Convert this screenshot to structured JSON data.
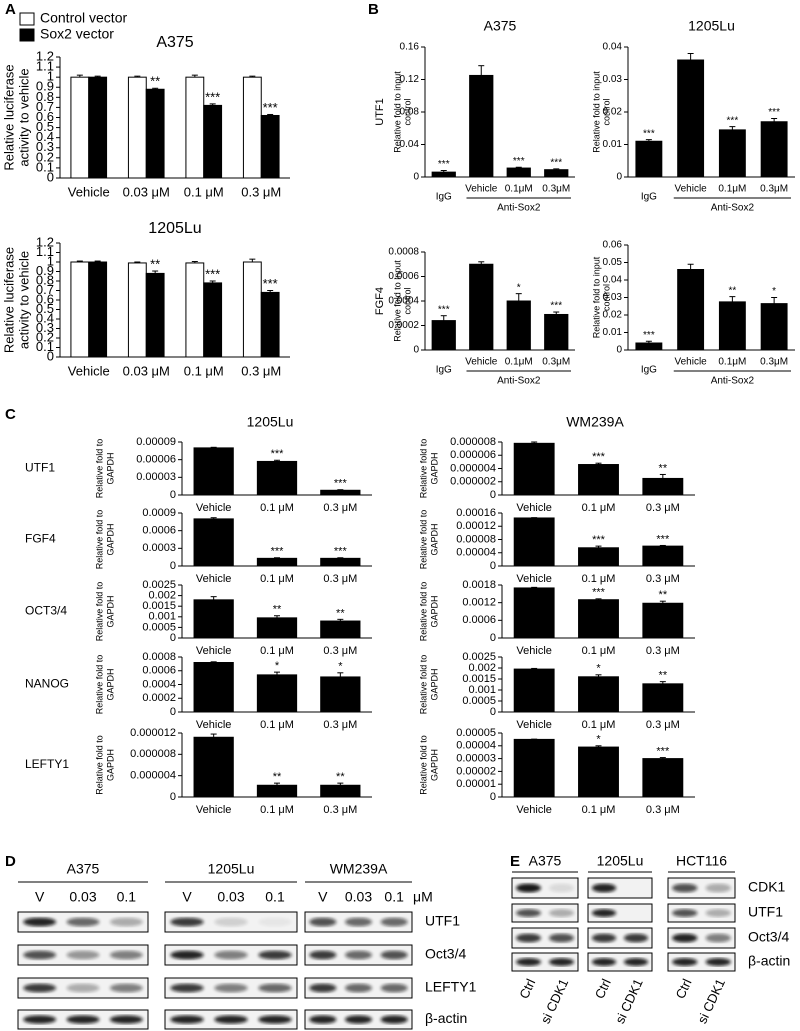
{
  "panel_labels": [
    "A",
    "B",
    "C",
    "D",
    "E"
  ],
  "chart_data": [
    {
      "type": "bar",
      "title": "A375",
      "legend": true,
      "y_label": [
        "Relative luciferase",
        "activity to vehicle"
      ],
      "categories": [
        "Vehicle",
        "0.03 μM",
        "0.1 μM",
        "0.3 μM"
      ],
      "ylim": [
        0,
        1.2
      ],
      "yticks": [
        0,
        0.1,
        0.2,
        0.3,
        0.4,
        0.5,
        0.6,
        0.7,
        0.8,
        0.9,
        1,
        1.1,
        1.2
      ],
      "series": [
        {
          "name": "Control vector",
          "color": "#ffffff",
          "values": [
            1,
            1,
            1,
            1
          ],
          "errors": [
            0.02,
            0.01,
            0.02,
            0.01
          ]
        },
        {
          "name": "Sox2 vector",
          "color": "#000000",
          "values": [
            1,
            0.88,
            0.72,
            0.62
          ],
          "errors": [
            0.01,
            0.01,
            0.015,
            0.01
          ],
          "annotations": [
            null,
            "**",
            "***",
            "***"
          ]
        }
      ]
    },
    {
      "type": "bar",
      "title": "1205Lu",
      "y_label": [
        "Relative luciferase",
        "activity to vehicle"
      ],
      "categories": [
        "Vehicle",
        "0.03 μM",
        "0.1 μM",
        "0.3 μM"
      ],
      "ylim": [
        0,
        1.2
      ],
      "yticks": [
        0,
        0.1,
        0.2,
        0.3,
        0.4,
        0.5,
        0.6,
        0.7,
        0.8,
        0.9,
        1,
        1.1,
        1.2
      ],
      "series": [
        {
          "color": "#ffffff",
          "values": [
            1,
            0.99,
            0.99,
            1
          ],
          "errors": [
            0.01,
            0.01,
            0.015,
            0.03
          ]
        },
        {
          "color": "#000000",
          "values": [
            1,
            0.88,
            0.78,
            0.68
          ],
          "errors": [
            0.01,
            0.025,
            0.02,
            0.02
          ],
          "annotations": [
            null,
            "**",
            "***",
            "***"
          ]
        }
      ]
    },
    {
      "type": "bar",
      "title": "A375",
      "gene": "UTF1",
      "y_label": [
        "Relative fold to input",
        "control"
      ],
      "categories": [
        "IgG",
        "Vehicle",
        "0.1μM",
        "0.3μM"
      ],
      "group_label": "Anti-Sox2",
      "ylim": [
        0,
        0.16
      ],
      "yticks": [
        0,
        0.04,
        0.08,
        0.12,
        0.16
      ],
      "series": [
        {
          "color": "#000000",
          "values": [
            0.006,
            0.125,
            0.011,
            0.009
          ],
          "errors": [
            0.002,
            0.012,
            0.001,
            0.001
          ],
          "annotations": [
            "***",
            null,
            "***",
            "***"
          ]
        }
      ]
    },
    {
      "type": "bar",
      "title": "1205Lu",
      "y_label": [
        "Relative fold to input",
        "control"
      ],
      "categories": [
        "IgG",
        "Vehicle",
        "0.1μM",
        "0.3μM"
      ],
      "group_label": "Anti-Sox2",
      "ylim": [
        0,
        0.04
      ],
      "yticks": [
        0,
        0.01,
        0.02,
        0.03,
        0.04
      ],
      "series": [
        {
          "color": "#000000",
          "values": [
            0.011,
            0.036,
            0.0145,
            0.017
          ],
          "errors": [
            0.0005,
            0.002,
            0.001,
            0.001
          ],
          "annotations": [
            "***",
            null,
            "***",
            "***"
          ]
        }
      ]
    },
    {
      "type": "bar",
      "gene": "FGF4",
      "y_label": [
        "Relative fold to input",
        "control"
      ],
      "categories": [
        "IgG",
        "Vehicle",
        "0.1μM",
        "0.3μM"
      ],
      "group_label": "Anti-Sox2",
      "ylim": [
        0,
        0.0008
      ],
      "yticks": [
        0,
        0.0002,
        0.0004,
        0.0006,
        0.0008
      ],
      "series": [
        {
          "color": "#000000",
          "values": [
            0.00024,
            0.0007,
            0.0004,
            0.00029
          ],
          "errors": [
            4e-05,
            2e-05,
            6e-05,
            2e-05
          ],
          "annotations": [
            "***",
            null,
            "*",
            "***"
          ]
        }
      ]
    },
    {
      "type": "bar",
      "y_label": [
        "Relative fold to input",
        "control"
      ],
      "categories": [
        "IgG",
        "Vehicle",
        "0.1μM",
        "0.3μM"
      ],
      "group_label": "Anti-Sox2",
      "ylim": [
        0,
        0.06
      ],
      "yticks": [
        0,
        0.01,
        0.02,
        0.03,
        0.04,
        0.05,
        0.06
      ],
      "series": [
        {
          "color": "#000000",
          "values": [
            0.004,
            0.046,
            0.0275,
            0.0265
          ],
          "errors": [
            0.001,
            0.003,
            0.003,
            0.0035
          ],
          "annotations": [
            "***",
            null,
            "**",
            "*"
          ]
        }
      ]
    },
    {
      "type": "bar",
      "title": "1205Lu",
      "gene": "UTF1",
      "y_label": [
        "Relative fold to",
        "GAPDH"
      ],
      "categories": [
        "Vehicle",
        "0.1 μM",
        "0.3 μM"
      ],
      "ylim": [
        0,
        9e-05
      ],
      "yticks": [
        0,
        3e-05,
        6e-05,
        9e-05
      ],
      "series": [
        {
          "color": "#000000",
          "values": [
            8e-05,
            5.7e-05,
            8e-06
          ],
          "errors": [
            1e-06,
            2e-06,
            1e-06
          ],
          "annotations": [
            null,
            "***",
            "***"
          ]
        }
      ]
    },
    {
      "type": "bar",
      "gene": "FGF4",
      "y_label": [
        "Relative fold to",
        "GAPDH"
      ],
      "categories": [
        "Vehicle",
        "0.1 μM",
        "0.3 μM"
      ],
      "ylim": [
        0,
        0.0009
      ],
      "yticks": [
        0,
        0.0003,
        0.0006,
        0.0009
      ],
      "series": [
        {
          "color": "#000000",
          "values": [
            0.0008,
            0.00013,
            0.00013
          ],
          "errors": [
            2e-05,
            1e-05,
            1e-05
          ],
          "annotations": [
            null,
            "***",
            "***"
          ]
        }
      ]
    },
    {
      "type": "bar",
      "gene": "OCT3/4",
      "y_label": [
        "Relative fold to",
        "GAPDH"
      ],
      "categories": [
        "Vehicle",
        "0.1 μM",
        "0.3 μM"
      ],
      "ylim": [
        0,
        0.0025
      ],
      "yticks": [
        0,
        0.0005,
        0.001,
        0.0015,
        0.002,
        0.0025
      ],
      "series": [
        {
          "color": "#000000",
          "values": [
            0.0018,
            0.00095,
            0.0008
          ],
          "errors": [
            0.00015,
            0.0001,
            8e-05
          ],
          "annotations": [
            null,
            "**",
            "**"
          ]
        }
      ]
    },
    {
      "type": "bar",
      "gene": "NANOG",
      "y_label": [
        "Relative fold to",
        "GAPDH"
      ],
      "categories": [
        "Vehicle",
        "0.1 μM",
        "0.3 μM"
      ],
      "ylim": [
        0,
        0.0008
      ],
      "yticks": [
        0,
        0.0002,
        0.0004,
        0.0006,
        0.0008
      ],
      "series": [
        {
          "color": "#000000",
          "values": [
            0.00072,
            0.00054,
            0.00051
          ],
          "errors": [
            1e-05,
            4e-05,
            6e-05
          ],
          "annotations": [
            null,
            "*",
            "*"
          ]
        }
      ]
    },
    {
      "type": "bar",
      "gene": "LEFTY1",
      "y_label": [
        "Relative fold to",
        "GAPDH"
      ],
      "categories": [
        "Vehicle",
        "0.1 μM",
        "0.3 μM"
      ],
      "ylim": [
        0,
        1.2e-05
      ],
      "yticks": [
        0,
        4e-06,
        8e-06,
        1.2e-05
      ],
      "series": [
        {
          "color": "#000000",
          "values": [
            1.12e-05,
            2.2e-06,
            2.2e-06
          ],
          "errors": [
            6e-07,
            4e-07,
            4e-07
          ],
          "annotations": [
            null,
            "**",
            "**"
          ]
        }
      ]
    },
    {
      "type": "bar",
      "title": "WM239A",
      "y_label": [
        "Relative fold to",
        "GAPDH"
      ],
      "categories": [
        "Vehicle",
        "0.1 μM",
        "0.3 μM"
      ],
      "ylim": [
        0,
        8e-06
      ],
      "yticks": [
        0,
        2e-06,
        4e-06,
        6e-06,
        8e-06
      ],
      "series": [
        {
          "color": "#000000",
          "values": [
            7.8e-06,
            4.6e-06,
            2.5e-06
          ],
          "errors": [
            2e-07,
            2e-07,
            6e-07
          ],
          "annotations": [
            null,
            "***",
            "**"
          ]
        }
      ]
    },
    {
      "type": "bar",
      "y_label": [
        "Relative fold to",
        "GAPDH"
      ],
      "categories": [
        "Vehicle",
        "0.1 μM",
        "0.3 μM"
      ],
      "ylim": [
        0,
        0.00016
      ],
      "yticks": [
        0,
        4e-05,
        8e-05,
        0.00012,
        0.00016
      ],
      "series": [
        {
          "color": "#000000",
          "values": [
            0.000145,
            5.5e-05,
            6e-05
          ],
          "errors": [
            1e-06,
            5e-06,
            2e-06
          ],
          "annotations": [
            null,
            "***",
            "***"
          ]
        }
      ]
    },
    {
      "type": "bar",
      "y_label": [
        "Relative fold to",
        "GAPDH"
      ],
      "categories": [
        "Vehicle",
        "0.1 μM",
        "0.3 μM"
      ],
      "ylim": [
        0,
        0.0018
      ],
      "yticks": [
        0,
        0.0006,
        0.0012,
        0.0018
      ],
      "series": [
        {
          "color": "#000000",
          "values": [
            0.0017,
            0.0013,
            0.00118
          ],
          "errors": [
            2e-05,
            3e-05,
            7e-05
          ],
          "annotations": [
            null,
            "***",
            "**"
          ]
        }
      ]
    },
    {
      "type": "bar",
      "y_label": [
        "Relative fold to",
        "GAPDH"
      ],
      "categories": [
        "Vehicle",
        "0.1 μM",
        "0.3 μM"
      ],
      "ylim": [
        0,
        0.0025
      ],
      "yticks": [
        0,
        0.0005,
        0.001,
        0.0015,
        0.002,
        0.0025
      ],
      "series": [
        {
          "color": "#000000",
          "values": [
            0.00195,
            0.0016,
            0.00128
          ],
          "errors": [
            3e-05,
            9e-05,
            0.0001
          ],
          "annotations": [
            null,
            "*",
            "**"
          ]
        }
      ]
    },
    {
      "type": "bar",
      "y_label": [
        "Relative fold to",
        "GAPDH"
      ],
      "categories": [
        "Vehicle",
        "0.1 μM",
        "0.3 μM"
      ],
      "ylim": [
        0,
        5e-05
      ],
      "yticks": [
        0,
        1e-05,
        2e-05,
        3e-05,
        4e-05,
        5e-05
      ],
      "series": [
        {
          "color": "#000000",
          "values": [
            4.5e-05,
            3.9e-05,
            3e-05
          ],
          "errors": [
            2e-07,
            1e-06,
            8e-07
          ],
          "annotations": [
            null,
            "*",
            "***"
          ]
        }
      ]
    }
  ],
  "blot_d": {
    "cell_lines": [
      "A375",
      "1205Lu",
      "WM239A"
    ],
    "lanes": [
      "V",
      "0.03",
      "0.1"
    ],
    "unit": "μM",
    "proteins": [
      "UTF1",
      "Oct3/4",
      "LEFTY1",
      "β-actin"
    ]
  },
  "blot_e": {
    "cell_lines": [
      "A375",
      "1205Lu",
      "HCT116"
    ],
    "lanes": [
      "Ctrl",
      "si CDK1"
    ],
    "proteins": [
      "CDK1",
      "UTF1",
      "Oct3/4",
      "β-actin"
    ]
  }
}
